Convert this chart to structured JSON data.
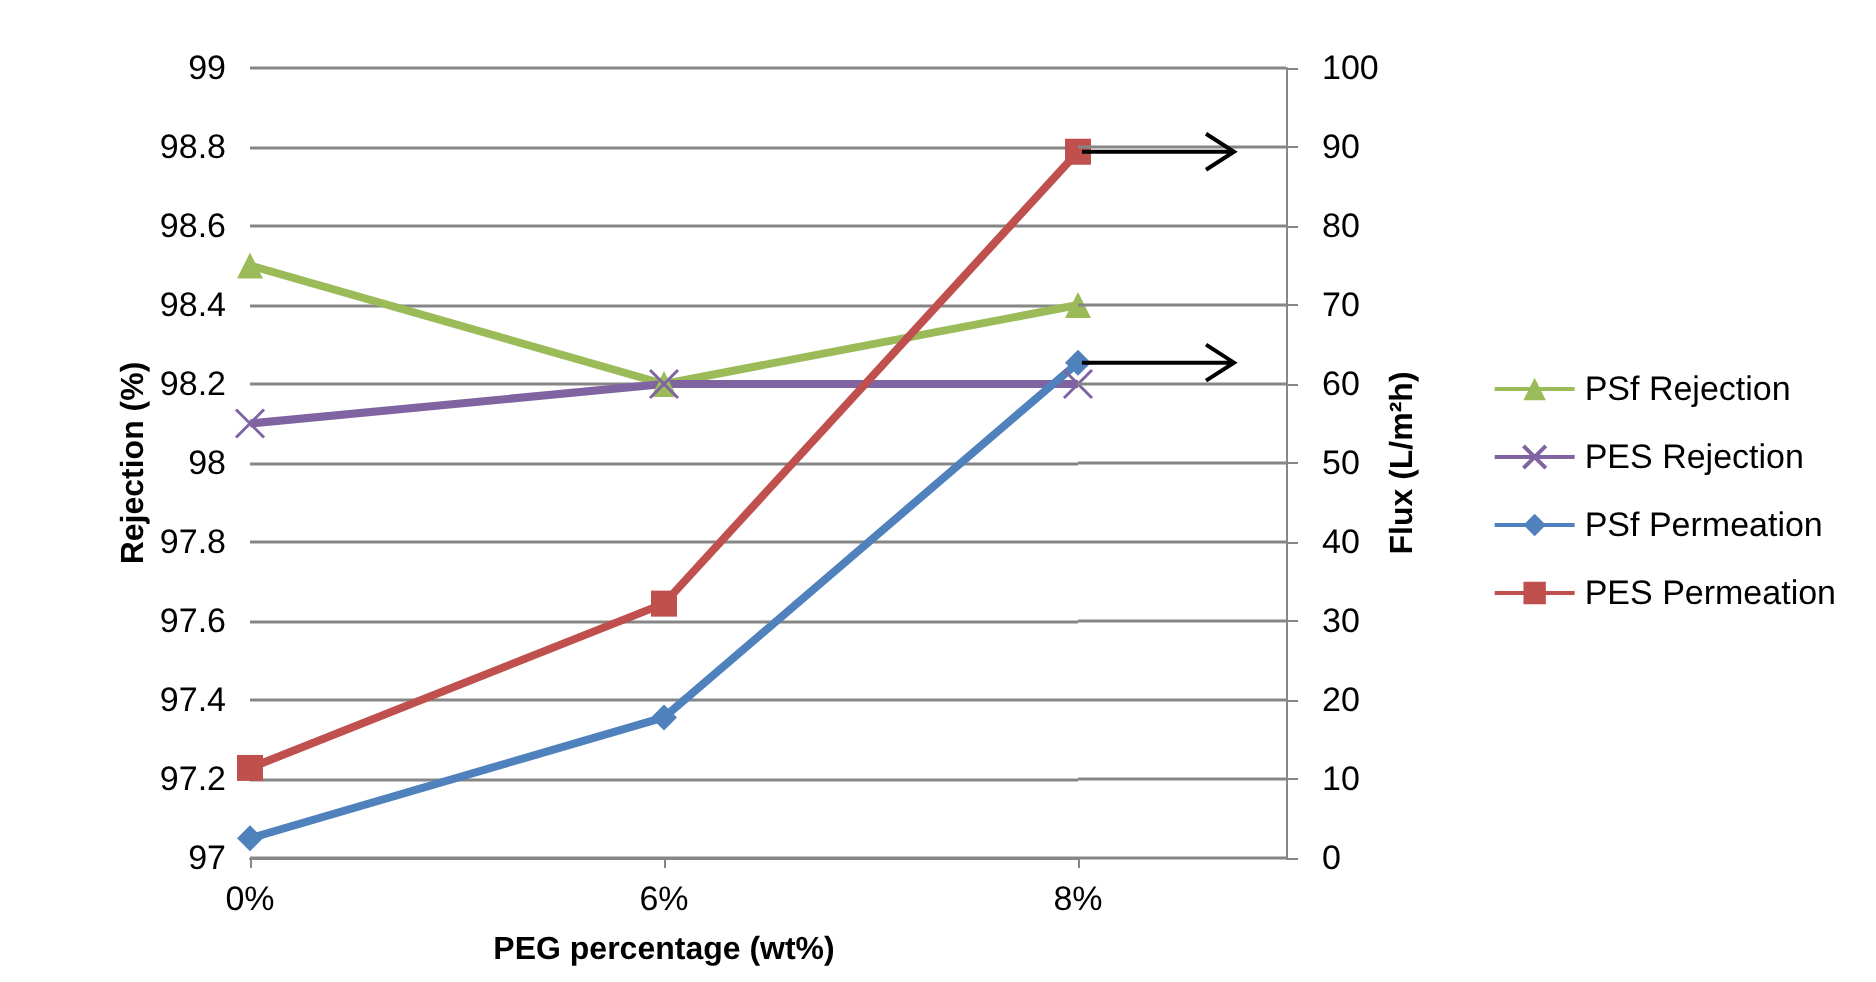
{
  "chart_data": {
    "type": "line",
    "xlabel": "PEG percentage (wt%)",
    "ylabel": "Rejection (%)",
    "y2label": "Flux (L/m²h)",
    "categories": [
      "0%",
      "6%",
      "8%"
    ],
    "series": [
      {
        "name": "PSf Rejection",
        "color": "#9bbb59",
        "marker": "triangle",
        "values": [
          98.5,
          98.2,
          98.4
        ]
      },
      {
        "name": "PES Rejection",
        "color": "#8064a2",
        "marker": "cross",
        "values": [
          98.1,
          98.2,
          98.2
        ]
      },
      {
        "name": "PSf Permeation",
        "color": "#4f81bd",
        "marker": "diamond",
        "axis": "y2",
        "values": [
          2.5,
          17.8,
          62.7
        ]
      },
      {
        "name": "PES Permeation",
        "color": "#c0504d",
        "marker": "square",
        "axis": "y2",
        "values": [
          11.4,
          32.2,
          89.4
        ]
      }
    ],
    "ylim": [
      97,
      99
    ],
    "yticks": [
      97,
      97.2,
      97.4,
      97.6,
      97.8,
      98,
      98.2,
      98.4,
      98.6,
      98.8,
      99
    ],
    "y2lim": [
      0,
      100
    ],
    "y2ticks": [
      0,
      10,
      20,
      30,
      40,
      50,
      60,
      70,
      80,
      90,
      100
    ],
    "grid": "y",
    "legend": "right",
    "line_style": "solid"
  }
}
